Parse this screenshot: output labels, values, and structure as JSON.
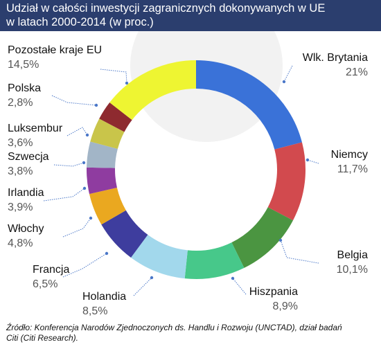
{
  "header": {
    "title_line1": "Udział w całości inwestycji zagranicznych dokonywanych w UE",
    "title_line2": "w latach 2000-2014 (w proc.)",
    "background": "#2b3e6e"
  },
  "source": {
    "line1": "Źródło: Konferencja Narodów Zjednoczonych ds. Handlu i Rozwoju (UNCTAD), dział badań",
    "line2": "Citi (Citi Research)."
  },
  "chart_data": {
    "type": "pie",
    "style": "donut",
    "unit": "%",
    "slices": [
      {
        "label": "Wlk. Brytania",
        "value": 21,
        "value_label": "21%",
        "color": "#3a72d8"
      },
      {
        "label": "Niemcy",
        "value": 11.7,
        "value_label": "11,7%",
        "color": "#d24a4e"
      },
      {
        "label": "Belgia",
        "value": 10.1,
        "value_label": "10,1%",
        "color": "#4b9541"
      },
      {
        "label": "Hiszpania",
        "value": 8.9,
        "value_label": "8,9%",
        "color": "#47c88a"
      },
      {
        "label": "Holandia",
        "value": 8.5,
        "value_label": "8,5%",
        "color": "#a2d8ec"
      },
      {
        "label": "Francja",
        "value": 6.5,
        "value_label": "6,5%",
        "color": "#3e3d9e"
      },
      {
        "label": "Włochy",
        "value": 4.8,
        "value_label": "4,8%",
        "color": "#eaa820"
      },
      {
        "label": "Irlandia",
        "value": 3.9,
        "value_label": "3,9%",
        "color": "#8f3ca0"
      },
      {
        "label": "Szwecja",
        "value": 3.8,
        "value_label": "3,8%",
        "color": "#a2b5c7"
      },
      {
        "label": "Luksembur",
        "value": 3.6,
        "value_label": "3,6%",
        "color": "#c9c54a"
      },
      {
        "label": "Polska",
        "value": 2.8,
        "value_label": "2,8%",
        "color": "#8e2a2f"
      },
      {
        "label": "Pozostałe kraje EU",
        "value": 14.5,
        "value_label": "14,5%",
        "color": "#eef532"
      }
    ]
  }
}
